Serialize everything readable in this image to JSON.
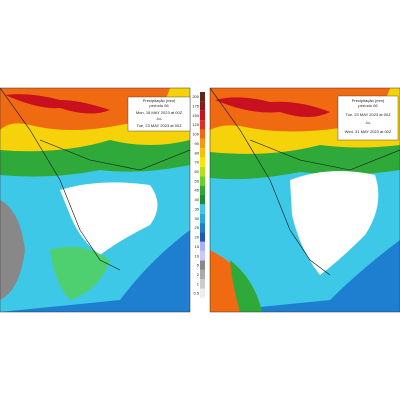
{
  "left_panel": {
    "legend": {
      "title": "Precipitação (mm)",
      "subtitle": "período 06",
      "start": "Mon, 15 MAY 2023 at 00Z",
      "separator": "-to-",
      "end": "Tue, 23 MAY 2023 at 00Z"
    }
  },
  "right_panel": {
    "legend": {
      "title": "Precipitação (mm)",
      "subtitle": "período 06",
      "start": "Tue, 23 MAY 2023 at 00Z",
      "separator": "-to-",
      "end": "Wed, 31 MAY 2023 at 00Z"
    }
  },
  "colorbar": {
    "labels": [
      "200",
      "175",
      "150",
      "125",
      "100",
      "90",
      "80",
      "70",
      "60",
      "50",
      "45",
      "40",
      "35",
      "30",
      "25",
      "20",
      "15",
      "10",
      "5",
      "2",
      "1",
      "0.5"
    ]
  }
}
